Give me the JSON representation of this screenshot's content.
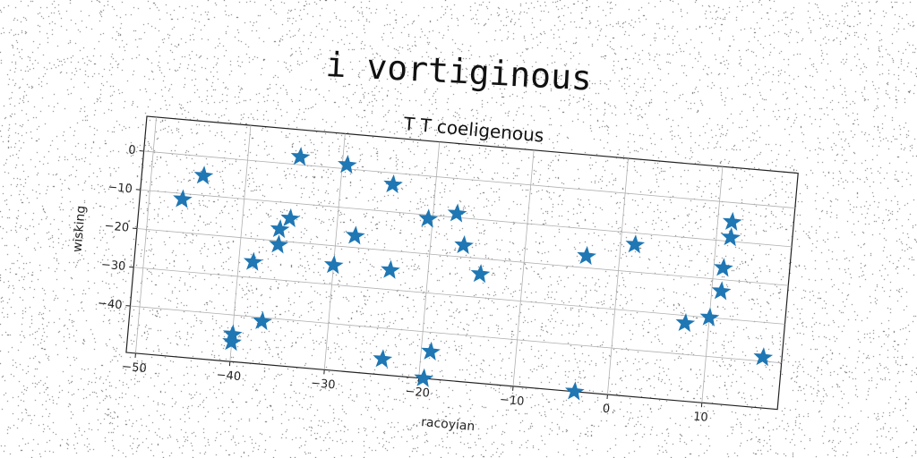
{
  "figure": {
    "suptitle": "i vortiginous"
  },
  "chart_data": {
    "type": "scatter",
    "title": "T T coeligenous",
    "xlabel": "racoyian",
    "ylabel": "wisking",
    "xlim": [
      -51,
      18
    ],
    "ylim": [
      -52,
      9
    ],
    "xticks": [
      -50,
      -40,
      -30,
      -20,
      -10,
      0,
      10
    ],
    "xtick_labels": [
      "−50",
      "−40",
      "−30",
      "−20",
      "−10",
      "0",
      "10"
    ],
    "yticks": [
      0,
      -10,
      -20,
      -30,
      -40
    ],
    "ytick_labels": [
      "0",
      "−10",
      "−20",
      "−30",
      "−40"
    ],
    "grid": true,
    "marker": "star",
    "color": "#1f77b4",
    "points": [
      {
        "x": -46.5,
        "y": -11.5
      },
      {
        "x": -44.5,
        "y": -5
      },
      {
        "x": -34.5,
        "y": 2
      },
      {
        "x": -29.5,
        "y": 1
      },
      {
        "x": -24.5,
        "y": -3
      },
      {
        "x": -20.5,
        "y": -11
      },
      {
        "x": -17.5,
        "y": -9
      },
      {
        "x": -16.5,
        "y": -17
      },
      {
        "x": -14.5,
        "y": -24
      },
      {
        "x": -3.5,
        "y": -17
      },
      {
        "x": 1.5,
        "y": -13
      },
      {
        "x": 11.5,
        "y": -5
      },
      {
        "x": 11.5,
        "y": -9
      },
      {
        "x": 11.0,
        "y": -17
      },
      {
        "x": 11.0,
        "y": -23
      },
      {
        "x": 10.0,
        "y": -30
      },
      {
        "x": 7.5,
        "y": -32
      },
      {
        "x": 16.0,
        "y": -39
      },
      {
        "x": -35.0,
        "y": -14
      },
      {
        "x": -36.0,
        "y": -17
      },
      {
        "x": -36.0,
        "y": -21
      },
      {
        "x": -38.5,
        "y": -26
      },
      {
        "x": -28.0,
        "y": -17
      },
      {
        "x": -30.0,
        "y": -25
      },
      {
        "x": -24.0,
        "y": -25
      },
      {
        "x": -37.0,
        "y": -41
      },
      {
        "x": -40.0,
        "y": -45
      },
      {
        "x": -40.0,
        "y": -47
      },
      {
        "x": -24.0,
        "y": -48
      },
      {
        "x": -19.0,
        "y": -45
      },
      {
        "x": -19.5,
        "y": -52
      },
      {
        "x": -3.5,
        "y": -52
      }
    ]
  }
}
